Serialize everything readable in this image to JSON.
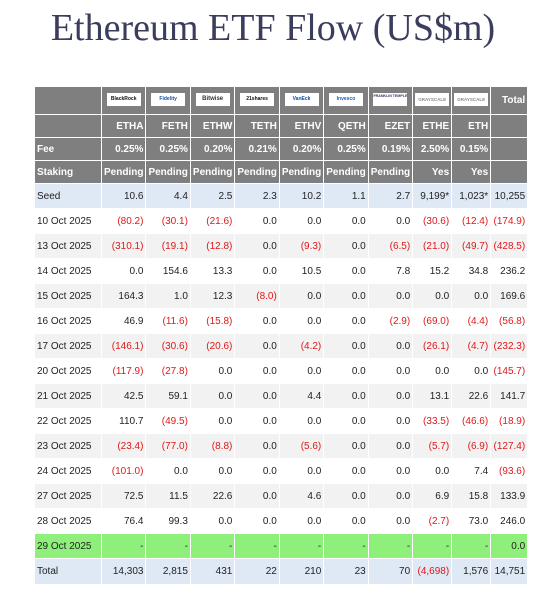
{
  "page": {
    "title": "Ethereum ETF Flow (US$m)"
  },
  "table": {
    "issuers": [
      {
        "id": "blackrock",
        "text": "BlackRock"
      },
      {
        "id": "fidelity",
        "text": "Fidelity"
      },
      {
        "id": "bitwise",
        "text": "Bitwise"
      },
      {
        "id": "21shares",
        "text": "21shares"
      },
      {
        "id": "vaneck",
        "text": "VanEck"
      },
      {
        "id": "invesco",
        "text": "Invesco"
      },
      {
        "id": "franklin",
        "text": "FRANKLIN TEMPLETON"
      },
      {
        "id": "grayscale-ethe",
        "text": "GRAYSCALE"
      },
      {
        "id": "grayscale-eth",
        "text": "GRAYSCALE"
      }
    ],
    "total_header": "Total",
    "tickers": [
      "ETHA",
      "FETH",
      "ETHW",
      "TETH",
      "ETHV",
      "QETH",
      "EZET",
      "ETHE",
      "ETH"
    ],
    "fee_label": "Fee",
    "fees": [
      "0.25%",
      "0.25%",
      "0.20%",
      "0.21%",
      "0.20%",
      "0.25%",
      "0.19%",
      "2.50%",
      "0.15%"
    ],
    "staking_label": "Staking",
    "staking": [
      "Pending",
      "Pending",
      "Pending",
      "Pending",
      "Pending",
      "Pending",
      "Pending",
      "Yes",
      "Yes"
    ],
    "rows": [
      {
        "date": "Seed",
        "values": [
          "10.6",
          "4.4",
          "2.5",
          "2.3",
          "10.2",
          "1.1",
          "2.7",
          "9,199*",
          "1,023*"
        ],
        "total": "10,255"
      },
      {
        "date": "10 Oct 2025",
        "values": [
          "(80.2)",
          "(30.1)",
          "(21.6)",
          "0.0",
          "0.0",
          "0.0",
          "0.0",
          "(30.6)",
          "(12.4)"
        ],
        "total": "(174.9)"
      },
      {
        "date": "13 Oct 2025",
        "values": [
          "(310.1)",
          "(19.1)",
          "(12.8)",
          "0.0",
          "(9.3)",
          "0.0",
          "(6.5)",
          "(21.0)",
          "(49.7)"
        ],
        "total": "(428.5)"
      },
      {
        "date": "14 Oct 2025",
        "values": [
          "0.0",
          "154.6",
          "13.3",
          "0.0",
          "10.5",
          "0.0",
          "7.8",
          "15.2",
          "34.8"
        ],
        "total": "236.2"
      },
      {
        "date": "15 Oct 2025",
        "values": [
          "164.3",
          "1.0",
          "12.3",
          "(8.0)",
          "0.0",
          "0.0",
          "0.0",
          "0.0",
          "0.0"
        ],
        "total": "169.6"
      },
      {
        "date": "16 Oct 2025",
        "values": [
          "46.9",
          "(11.6)",
          "(15.8)",
          "0.0",
          "0.0",
          "0.0",
          "(2.9)",
          "(69.0)",
          "(4.4)"
        ],
        "total": "(56.8)"
      },
      {
        "date": "17 Oct 2025",
        "values": [
          "(146.1)",
          "(30.6)",
          "(20.6)",
          "0.0",
          "(4.2)",
          "0.0",
          "0.0",
          "(26.1)",
          "(4.7)"
        ],
        "total": "(232.3)"
      },
      {
        "date": "20 Oct 2025",
        "values": [
          "(117.9)",
          "(27.8)",
          "0.0",
          "0.0",
          "0.0",
          "0.0",
          "0.0",
          "0.0",
          "0.0"
        ],
        "total": "(145.7)"
      },
      {
        "date": "21 Oct 2025",
        "values": [
          "42.5",
          "59.1",
          "0.0",
          "0.0",
          "4.4",
          "0.0",
          "0.0",
          "13.1",
          "22.6"
        ],
        "total": "141.7"
      },
      {
        "date": "22 Oct 2025",
        "values": [
          "110.7",
          "(49.5)",
          "0.0",
          "0.0",
          "0.0",
          "0.0",
          "0.0",
          "(33.5)",
          "(46.6)"
        ],
        "total": "(18.9)"
      },
      {
        "date": "23 Oct 2025",
        "values": [
          "(23.4)",
          "(77.0)",
          "(8.8)",
          "0.0",
          "(5.6)",
          "0.0",
          "0.0",
          "(5.7)",
          "(6.9)"
        ],
        "total": "(127.4)"
      },
      {
        "date": "24 Oct 2025",
        "values": [
          "(101.0)",
          "0.0",
          "0.0",
          "0.0",
          "0.0",
          "0.0",
          "0.0",
          "0.0",
          "7.4"
        ],
        "total": "(93.6)"
      },
      {
        "date": "27 Oct 2025",
        "values": [
          "72.5",
          "11.5",
          "22.6",
          "0.0",
          "4.6",
          "0.0",
          "0.0",
          "6.9",
          "15.8"
        ],
        "total": "133.9"
      },
      {
        "date": "28 Oct 2025",
        "values": [
          "76.4",
          "99.3",
          "0.0",
          "0.0",
          "0.0",
          "0.0",
          "0.0",
          "(2.7)",
          "73.0"
        ],
        "total": "246.0"
      },
      {
        "date": "29 Oct 2025",
        "values": [
          "-",
          "-",
          "-",
          "-",
          "-",
          "-",
          "-",
          "-",
          "-"
        ],
        "total": "0.0",
        "highlight": true
      }
    ],
    "total_row": {
      "date": "Total",
      "values": [
        "14,303",
        "2,815",
        "431",
        "22",
        "210",
        "23",
        "70",
        "(4,698)",
        "1,576"
      ],
      "total": "14,751"
    }
  }
}
